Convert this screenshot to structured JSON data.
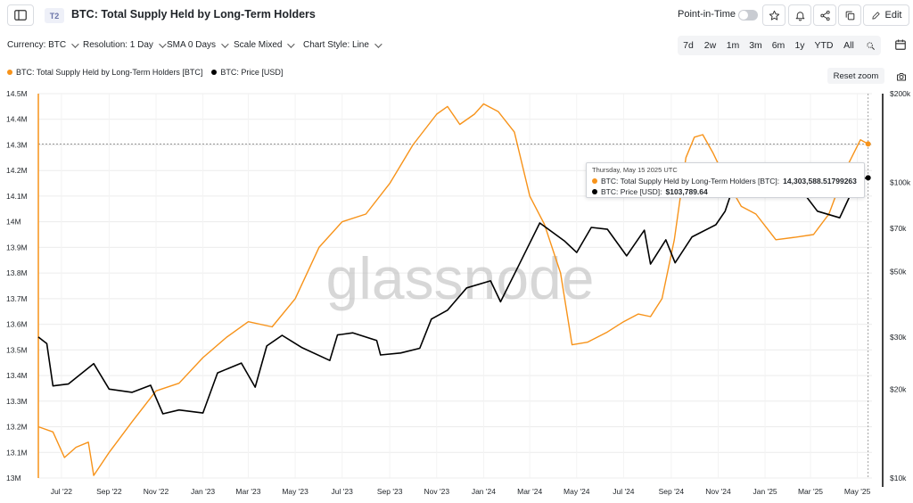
{
  "header": {
    "tier_badge": "T2",
    "title": "BTC: Total Supply Held by Long-Term Holders",
    "point_in_time_label": "Point-in-Time",
    "edit_label": "Edit"
  },
  "controls": {
    "currency": "Currency: BTC",
    "resolution": "Resolution: 1 Day",
    "sma": "SMA 0 Days",
    "scale": "Scale Mixed",
    "chart_style": "Chart Style: Line",
    "ranges": [
      "7d",
      "2w",
      "1m",
      "3m",
      "6m",
      "1y",
      "YTD",
      "All"
    ]
  },
  "legend": {
    "supply_label": "BTC: Total Supply Held by Long-Term Holders [BTC]",
    "price_label": "BTC: Price [USD]",
    "reset_zoom": "Reset zoom"
  },
  "tooltip": {
    "date": "Thursday, May 15 2025 UTC",
    "supply_label": "BTC: Total Supply Held by Long-Term Holders [BTC]:",
    "supply_value": "14,303,588.51799263",
    "price_label": "BTC: Price [USD]:",
    "price_value": "$103,789.64"
  },
  "watermark": "glassnode",
  "colors": {
    "supply": "#f7931a",
    "price": "#000000",
    "grid": "#ececec"
  },
  "chart_data": {
    "type": "line",
    "x_ticks": [
      "Jul '22",
      "Sep '22",
      "Nov '22",
      "Jan '23",
      "Mar '23",
      "May '23",
      "Jul '23",
      "Sep '23",
      "Nov '23",
      "Jan '24",
      "Mar '24",
      "May '24",
      "Jul '24",
      "Sep '24",
      "Nov '24",
      "Jan '25",
      "Mar '25",
      "May '25"
    ],
    "y_left_ticks": [
      "14.5M",
      "14.4M",
      "14.3M",
      "14.2M",
      "14.1M",
      "14M",
      "13.9M",
      "13.8M",
      "13.7M",
      "13.6M",
      "13.5M",
      "13.4M",
      "13.3M",
      "13.2M",
      "13.1M",
      "13M"
    ],
    "y_right_ticks": [
      "$200k",
      "$100k",
      "$70k",
      "$50k",
      "$30k",
      "$20k",
      "$10k"
    ],
    "y_left_range": [
      13000000,
      14500000
    ],
    "y_right_range": [
      10000,
      200000
    ],
    "y_right_scale": "log",
    "x_range": [
      "2022-06-01",
      "2025-05-20"
    ],
    "grid": true,
    "series": [
      {
        "name": "BTC: Total Supply Held by Long-Term Holders [BTC]",
        "axis": "left",
        "points": [
          [
            "2022-06-01",
            13200000
          ],
          [
            "2022-06-20",
            13180000
          ],
          [
            "2022-07-05",
            13080000
          ],
          [
            "2022-07-20",
            13120000
          ],
          [
            "2022-08-05",
            13140000
          ],
          [
            "2022-08-12",
            13010000
          ],
          [
            "2022-09-01",
            13100000
          ],
          [
            "2022-10-01",
            13220000
          ],
          [
            "2022-11-01",
            13340000
          ],
          [
            "2022-12-01",
            13370000
          ],
          [
            "2023-01-01",
            13470000
          ],
          [
            "2023-02-01",
            13550000
          ],
          [
            "2023-03-01",
            13610000
          ],
          [
            "2023-04-01",
            13590000
          ],
          [
            "2023-05-01",
            13700000
          ],
          [
            "2023-06-01",
            13900000
          ],
          [
            "2023-07-01",
            14000000
          ],
          [
            "2023-08-01",
            14030000
          ],
          [
            "2023-09-01",
            14150000
          ],
          [
            "2023-10-01",
            14300000
          ],
          [
            "2023-11-01",
            14420000
          ],
          [
            "2023-11-15",
            14450000
          ],
          [
            "2023-12-01",
            14380000
          ],
          [
            "2023-12-20",
            14420000
          ],
          [
            "2024-01-01",
            14460000
          ],
          [
            "2024-01-20",
            14430000
          ],
          [
            "2024-02-10",
            14350000
          ],
          [
            "2024-03-01",
            14100000
          ],
          [
            "2024-03-20",
            13990000
          ],
          [
            "2024-04-10",
            13800000
          ],
          [
            "2024-04-25",
            13520000
          ],
          [
            "2024-05-15",
            13530000
          ],
          [
            "2024-06-10",
            13570000
          ],
          [
            "2024-07-01",
            13610000
          ],
          [
            "2024-07-20",
            13640000
          ],
          [
            "2024-08-05",
            13630000
          ],
          [
            "2024-08-20",
            13700000
          ],
          [
            "2024-09-05",
            13930000
          ],
          [
            "2024-09-20",
            14250000
          ],
          [
            "2024-10-01",
            14330000
          ],
          [
            "2024-10-12",
            14340000
          ],
          [
            "2024-10-25",
            14270000
          ],
          [
            "2024-11-10",
            14170000
          ],
          [
            "2024-12-01",
            14060000
          ],
          [
            "2024-12-20",
            14030000
          ],
          [
            "2025-01-15",
            13930000
          ],
          [
            "2025-02-10",
            13940000
          ],
          [
            "2025-03-05",
            13950000
          ],
          [
            "2025-03-25",
            14030000
          ],
          [
            "2025-04-15",
            14200000
          ],
          [
            "2025-05-05",
            14320000
          ],
          [
            "2025-05-15",
            14303588
          ]
        ]
      },
      {
        "name": "BTC: Price [USD]",
        "axis": "right",
        "points": [
          [
            "2022-06-01",
            30000
          ],
          [
            "2022-06-12",
            28500
          ],
          [
            "2022-06-20",
            20500
          ],
          [
            "2022-07-10",
            20800
          ],
          [
            "2022-08-12",
            24400
          ],
          [
            "2022-09-01",
            20000
          ],
          [
            "2022-10-01",
            19500
          ],
          [
            "2022-10-25",
            20600
          ],
          [
            "2022-11-10",
            16500
          ],
          [
            "2022-12-01",
            17000
          ],
          [
            "2023-01-01",
            16600
          ],
          [
            "2023-01-20",
            22700
          ],
          [
            "2023-02-20",
            24500
          ],
          [
            "2023-03-10",
            20300
          ],
          [
            "2023-03-25",
            28000
          ],
          [
            "2023-04-14",
            30400
          ],
          [
            "2023-05-10",
            27600
          ],
          [
            "2023-06-15",
            25000
          ],
          [
            "2023-06-25",
            30500
          ],
          [
            "2023-07-15",
            31000
          ],
          [
            "2023-08-15",
            29200
          ],
          [
            "2023-08-20",
            26100
          ],
          [
            "2023-09-15",
            26500
          ],
          [
            "2023-10-10",
            27500
          ],
          [
            "2023-10-25",
            34500
          ],
          [
            "2023-11-15",
            37000
          ],
          [
            "2023-12-10",
            44000
          ],
          [
            "2024-01-10",
            46500
          ],
          [
            "2024-01-23",
            39500
          ],
          [
            "2024-02-15",
            52000
          ],
          [
            "2024-03-14",
            73000
          ],
          [
            "2024-04-15",
            63500
          ],
          [
            "2024-05-01",
            58000
          ],
          [
            "2024-05-20",
            70500
          ],
          [
            "2024-06-10",
            69500
          ],
          [
            "2024-07-05",
            56500
          ],
          [
            "2024-07-28",
            69000
          ],
          [
            "2024-08-05",
            53000
          ],
          [
            "2024-08-25",
            64000
          ],
          [
            "2024-09-06",
            53500
          ],
          [
            "2024-09-28",
            65500
          ],
          [
            "2024-10-29",
            72000
          ],
          [
            "2024-11-10",
            80000
          ],
          [
            "2024-11-22",
            99000
          ],
          [
            "2024-12-17",
            106000
          ],
          [
            "2025-01-01",
            94000
          ],
          [
            "2025-01-21",
            106000
          ],
          [
            "2025-02-15",
            96000
          ],
          [
            "2025-03-10",
            80000
          ],
          [
            "2025-04-08",
            76000
          ],
          [
            "2025-04-25",
            94500
          ],
          [
            "2025-05-10",
            103500
          ],
          [
            "2025-05-15",
            103789.64
          ]
        ]
      }
    ]
  }
}
